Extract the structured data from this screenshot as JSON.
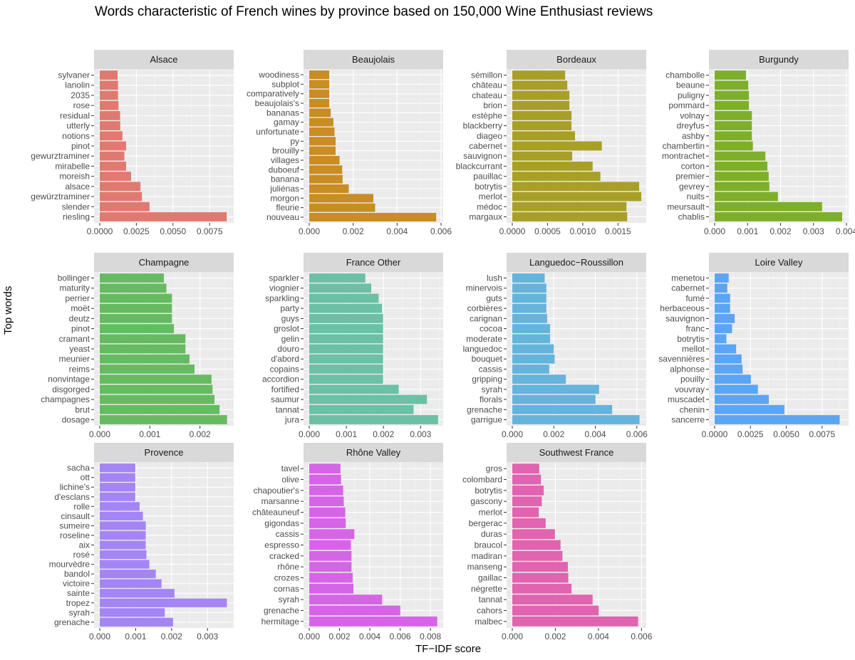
{
  "chart_data": {
    "type": "bar",
    "orientation": "horizontal",
    "title": "Words characteristic of French wines by province based on 150,000 Wine Enthusiast reviews",
    "xlabel": "TF−IDF score",
    "ylabel": "Top words",
    "grid": true,
    "legend": "none",
    "facets": [
      {
        "name": "Alsace",
        "color": "#E07970",
        "xlim": [
          0,
          0.009
        ],
        "ticks": [
          0,
          0.0025,
          0.005,
          0.0075
        ],
        "tick_labels": [
          "0.0000",
          "0.0025",
          "0.0050",
          "0.0075"
        ],
        "categories": [
          "sylvaner",
          "lanolin",
          "2035",
          "rose",
          "residual",
          "utterly",
          "notions",
          "pinot",
          "gewurztraminer",
          "mirabelle",
          "moreish",
          "alsace",
          "gewürztraminer",
          "slender",
          "riesling"
        ],
        "values": [
          0.00122,
          0.00125,
          0.00125,
          0.00128,
          0.00139,
          0.0014,
          0.00155,
          0.0018,
          0.00168,
          0.0018,
          0.00214,
          0.00278,
          0.00288,
          0.0034,
          0.00867
        ]
      },
      {
        "name": "Beaujolais",
        "color": "#C98D24",
        "xlim": [
          0,
          0.006
        ],
        "ticks": [
          0,
          0.002,
          0.004,
          0.006
        ],
        "tick_labels": [
          "0.000",
          "0.002",
          "0.004",
          "0.006"
        ],
        "categories": [
          "woodiness",
          "subplot",
          "comparatively",
          "beaujolais's",
          "bananas",
          "gamay",
          "unfortunate",
          "py",
          "brouilly",
          "villages",
          "duboeuf",
          "banana",
          "juliénas",
          "morgon",
          "fleurie",
          "nouveau"
        ],
        "values": [
          0.00091,
          0.00091,
          0.00091,
          0.00091,
          0.00098,
          0.0011,
          0.00115,
          0.0012,
          0.0012,
          0.00138,
          0.0015,
          0.00152,
          0.0018,
          0.00292,
          0.003,
          0.00578
        ]
      },
      {
        "name": "Bordeaux",
        "color": "#A89F27",
        "xlim": [
          0,
          0.00187
        ],
        "ticks": [
          0,
          0.0005,
          0.001,
          0.0015
        ],
        "tick_labels": [
          "0.0000",
          "0.0005",
          "0.0010",
          "0.0015"
        ],
        "categories": [
          "sémillon",
          "château",
          "chateau",
          "brion",
          "estèphe",
          "blackberry",
          "diageo",
          "cabernet",
          "sauvignon",
          "blackcurrant",
          "pauillac",
          "botrytis",
          "merlot",
          "médoc",
          "margaux"
        ],
        "values": [
          0.00075,
          0.00078,
          0.00081,
          0.00081,
          0.00084,
          0.00084,
          0.00089,
          0.00127,
          0.00085,
          0.00114,
          0.00125,
          0.0018,
          0.00183,
          0.00162,
          0.00163
        ]
      },
      {
        "name": "Burgundy",
        "color": "#7DAF2A",
        "xlim": [
          0,
          0.004
        ],
        "ticks": [
          0,
          0.001,
          0.002,
          0.003,
          0.004
        ],
        "tick_labels": [
          "0.000",
          "0.001",
          "0.002",
          "0.003",
          "0.004"
        ],
        "categories": [
          "chambolle",
          "beaune",
          "puligny",
          "pommard",
          "volnay",
          "dreyfus",
          "ashby",
          "chambertin",
          "montrachet",
          "corton",
          "premier",
          "gevrey",
          "nuits",
          "meursault",
          "chablis"
        ],
        "values": [
          0.00095,
          0.00102,
          0.00104,
          0.00104,
          0.00113,
          0.00113,
          0.00113,
          0.00116,
          0.00154,
          0.0016,
          0.00164,
          0.00166,
          0.00192,
          0.00326,
          0.00387
        ]
      },
      {
        "name": "Champagne",
        "color": "#66BB61",
        "xlim": [
          0,
          0.00263
        ],
        "ticks": [
          0,
          0.001,
          0.002
        ],
        "tick_labels": [
          "0.000",
          "0.001",
          "0.002"
        ],
        "categories": [
          "bollinger",
          "maturity",
          "perrier",
          "moët",
          "deutz",
          "pinot",
          "cramant",
          "yeast",
          "meunier",
          "reims",
          "nonvintage",
          "disgorged",
          "champagnes",
          "brut",
          "dosage"
        ],
        "values": [
          0.00128,
          0.00133,
          0.00144,
          0.00144,
          0.00144,
          0.00148,
          0.00171,
          0.00171,
          0.00179,
          0.00189,
          0.00223,
          0.00225,
          0.00229,
          0.00239,
          0.00254
        ]
      },
      {
        "name": "France Other",
        "color": "#6BC0A5",
        "xlim": [
          0,
          0.00355
        ],
        "ticks": [
          0,
          0.001,
          0.002,
          0.003
        ],
        "tick_labels": [
          "0.000",
          "0.001",
          "0.002",
          "0.003"
        ],
        "categories": [
          "sparkler",
          "viognier",
          "sparkling",
          "party",
          "guys",
          "groslot",
          "gelin",
          "douro",
          "d'abord",
          "copains",
          "accordion",
          "fortified",
          "saumur",
          "tannat",
          "jura"
        ],
        "values": [
          0.00151,
          0.00167,
          0.00187,
          0.00196,
          0.00199,
          0.00199,
          0.00199,
          0.00199,
          0.00199,
          0.00199,
          0.00199,
          0.00241,
          0.00317,
          0.00281,
          0.00347
        ]
      },
      {
        "name": "Languedoc−Roussillon",
        "color": "#65B4DB",
        "xlim": [
          0,
          0.00635
        ],
        "ticks": [
          0,
          0.002,
          0.004,
          0.006
        ],
        "tick_labels": [
          "0.000",
          "0.002",
          "0.004",
          "0.006"
        ],
        "categories": [
          "lush",
          "minervois",
          "guts",
          "corbières",
          "carignan",
          "cocoa",
          "moderate",
          "languedoc",
          "bouquet",
          "cassis",
          "gripping",
          "syrah",
          "florals",
          "grenache",
          "garrigue"
        ],
        "values": [
          0.00156,
          0.00164,
          0.00164,
          0.00164,
          0.00168,
          0.00182,
          0.00182,
          0.002,
          0.00204,
          0.00178,
          0.00258,
          0.00418,
          0.00401,
          0.00481,
          0.00613
        ]
      },
      {
        "name": "Loire Valley",
        "color": "#5BA5F5",
        "xlim": [
          0,
          0.0092
        ],
        "ticks": [
          0,
          0.0025,
          0.005,
          0.0075
        ],
        "tick_labels": [
          "0.0000",
          "0.0025",
          "0.0050",
          "0.0075"
        ],
        "categories": [
          "menetou",
          "cabernet",
          "fumé",
          "herbaceous",
          "sauvignon",
          "franc",
          "botrytis",
          "mellot",
          "savennières",
          "alphonse",
          "pouilly",
          "vouvray",
          "muscadet",
          "chenin",
          "sancerre"
        ],
        "values": [
          0.00098,
          0.00088,
          0.00108,
          0.00108,
          0.0014,
          0.00122,
          0.00082,
          0.0015,
          0.00188,
          0.00195,
          0.00253,
          0.00302,
          0.00378,
          0.00487,
          0.00873
        ]
      },
      {
        "name": "Provence",
        "color": "#A585F5",
        "xlim": [
          0,
          0.00367
        ],
        "ticks": [
          0,
          0.001,
          0.002,
          0.003
        ],
        "tick_labels": [
          "0.000",
          "0.001",
          "0.002",
          "0.003"
        ],
        "categories": [
          "sacha",
          "ott",
          "lichine's",
          "d'esclans",
          "rolle",
          "cinsault",
          "sumeire",
          "roseline",
          "aix",
          "rosé",
          "mourvèdre",
          "bandol",
          "victoire",
          "sainte",
          "tropez",
          "syrah",
          "grenache"
        ],
        "values": [
          0.00099,
          0.00099,
          0.00099,
          0.00099,
          0.00111,
          0.0012,
          0.00128,
          0.00128,
          0.00128,
          0.0013,
          0.00138,
          0.00156,
          0.00172,
          0.00208,
          0.00354,
          0.00181,
          0.00204
        ]
      },
      {
        "name": "Rhône Valley",
        "color": "#D565E6",
        "xlim": [
          0,
          0.0087
        ],
        "ticks": [
          0,
          0.002,
          0.004,
          0.006,
          0.008
        ],
        "tick_labels": [
          "0.000",
          "0.002",
          "0.004",
          "0.006",
          "0.008"
        ],
        "categories": [
          "tavel",
          "olive",
          "chapoutier's",
          "marsanne",
          "châteauneuf",
          "gigondas",
          "cassis",
          "espresso",
          "cracked",
          "rhône",
          "crozes",
          "cornas",
          "syrah",
          "grenache",
          "hermitage"
        ],
        "values": [
          0.00206,
          0.0021,
          0.00224,
          0.00228,
          0.00238,
          0.00241,
          0.00298,
          0.00275,
          0.00279,
          0.00279,
          0.00287,
          0.00292,
          0.00481,
          0.00601,
          0.00845
        ]
      },
      {
        "name": "Southwest France",
        "color": "#E064AF",
        "xlim": [
          0,
          0.00612
        ],
        "ticks": [
          0,
          0.002,
          0.004,
          0.006
        ],
        "tick_labels": [
          "0.000",
          "0.002",
          "0.004",
          "0.006"
        ],
        "categories": [
          "gros",
          "colombard",
          "botrytis",
          "gascony",
          "merlot",
          "bergerac",
          "duras",
          "braucol",
          "madiran",
          "manseng",
          "gaillac",
          "négrette",
          "tannat",
          "cahors",
          "malbec"
        ],
        "values": [
          0.00125,
          0.00133,
          0.00146,
          0.00137,
          0.00123,
          0.00155,
          0.00198,
          0.00224,
          0.00233,
          0.00258,
          0.0026,
          0.00275,
          0.00373,
          0.00401,
          0.00584
        ]
      }
    ]
  }
}
